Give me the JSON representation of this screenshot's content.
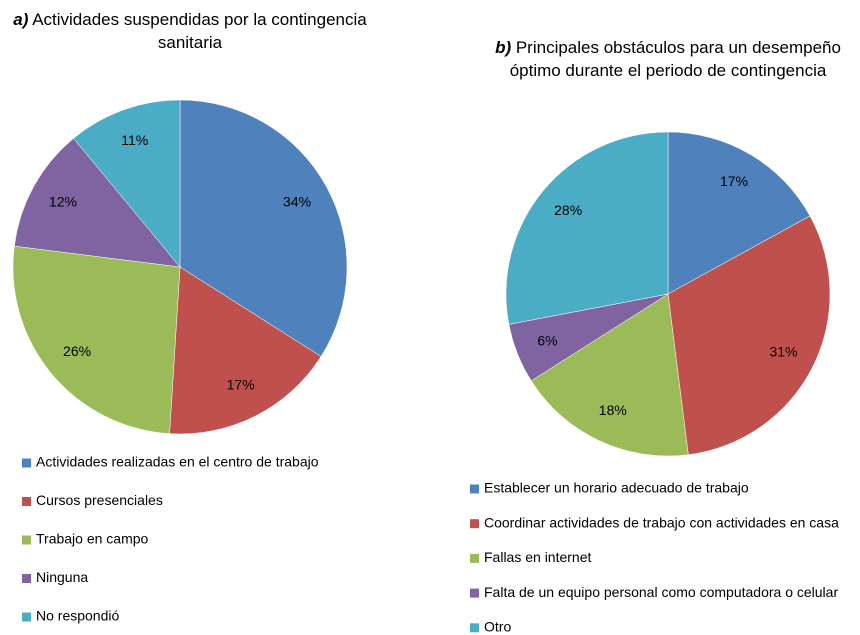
{
  "chart_data": [
    {
      "type": "pie",
      "panel": "a)",
      "title": "Actividades suspendidas por la contingencia sanitaria",
      "categories": [
        "Actividades realizadas en el centro de trabajo",
        "Cursos presenciales",
        "Trabajo en campo",
        "Ninguna",
        "No respondió"
      ],
      "values": [
        34,
        17,
        26,
        12,
        11
      ],
      "value_labels": [
        "34%",
        "17%",
        "26%",
        "12%",
        "11%"
      ],
      "colors": [
        "#4f81bd",
        "#c0504d",
        "#9bbb59",
        "#8064a2",
        "#4bacc6"
      ],
      "legend": "bottom"
    },
    {
      "type": "pie",
      "panel": "b)",
      "title": "Principales obstáculos para un desempeño óptimo durante el periodo de contingencia",
      "categories": [
        "Establecer un horario adecuado de trabajo",
        "Coordinar actividades de trabajo con actividades en casa",
        "Fallas en internet",
        "Falta de un equipo personal como computadora o celular",
        "Otro"
      ],
      "values": [
        17,
        31,
        18,
        6,
        28
      ],
      "value_labels": [
        "17%",
        "31%",
        "18%",
        "6%",
        "28%"
      ],
      "colors": [
        "#4f81bd",
        "#c0504d",
        "#9bbb59",
        "#8064a2",
        "#4bacc6"
      ],
      "legend": "bottom"
    }
  ]
}
